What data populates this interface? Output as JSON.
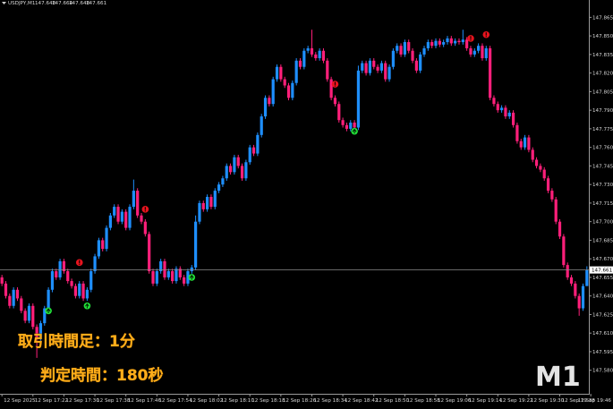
{
  "chart_data": {
    "type": "candlestick",
    "symbol": "USDJPY,M1",
    "up_color": "#1e8fff",
    "down_color": "#ff1f7a",
    "price_line_color": "#8a8a8a",
    "open": [
      147.655,
      147.65,
      147.64,
      147.632,
      147.645,
      147.638,
      147.628,
      147.62,
      147.632,
      147.615,
      147.605,
      147.618,
      147.63,
      147.645,
      147.66,
      147.655,
      147.668,
      147.66,
      147.652,
      147.648,
      147.64,
      147.65,
      147.638,
      147.645,
      147.66,
      147.672,
      147.685,
      147.678,
      147.695,
      147.705,
      147.712,
      147.7,
      147.708,
      147.695,
      147.712,
      147.725,
      147.705,
      147.7,
      147.69,
      147.66,
      147.65,
      147.66,
      147.668,
      147.655,
      147.66,
      147.652,
      147.662,
      147.655,
      147.65,
      147.66,
      147.663,
      147.7,
      147.715,
      147.71,
      147.72,
      147.712,
      147.725,
      147.73,
      147.735,
      147.745,
      147.74,
      147.752,
      147.745,
      147.735,
      147.748,
      147.76,
      147.755,
      147.77,
      147.785,
      147.8,
      147.795,
      147.815,
      147.825,
      147.815,
      147.81,
      147.8,
      147.812,
      147.83,
      147.825,
      147.838,
      147.84,
      147.835,
      147.832,
      147.838,
      147.83,
      147.815,
      147.8,
      147.795,
      147.782,
      147.778,
      147.775,
      147.78,
      147.776,
      147.822,
      147.828,
      147.82,
      147.83,
      147.825,
      147.822,
      147.828,
      147.815,
      147.825,
      147.838,
      147.842,
      147.835,
      147.845,
      147.838,
      147.83,
      147.822,
      147.835,
      147.84,
      147.845,
      147.842,
      147.846,
      147.843,
      147.845,
      147.848,
      147.844,
      147.846,
      147.845,
      147.847,
      147.84,
      147.835,
      147.838,
      147.842,
      147.832,
      147.84,
      147.8,
      147.795,
      147.79,
      147.792,
      147.785,
      147.788,
      147.778,
      147.765,
      147.76,
      147.768,
      147.758,
      147.75,
      147.745,
      147.742,
      147.735,
      147.725,
      147.718,
      147.7,
      147.688,
      147.665,
      147.655,
      147.65,
      147.64,
      147.63,
      147.648
    ],
    "high": [
      147.657,
      147.652,
      147.642,
      147.647,
      147.647,
      147.64,
      147.63,
      147.634,
      147.634,
      147.617,
      147.62,
      147.632,
      147.647,
      147.662,
      147.662,
      147.67,
      147.67,
      147.662,
      147.654,
      147.65,
      147.652,
      147.652,
      147.647,
      147.662,
      147.674,
      147.687,
      147.687,
      147.697,
      147.707,
      147.714,
      147.714,
      147.71,
      147.71,
      147.714,
      147.734,
      147.727,
      147.707,
      147.702,
      147.692,
      147.662,
      147.662,
      147.67,
      147.67,
      147.662,
      147.662,
      147.664,
      147.664,
      147.657,
      147.662,
      147.665,
      147.705,
      147.717,
      147.717,
      147.722,
      147.722,
      147.727,
      147.732,
      147.737,
      147.747,
      147.747,
      147.754,
      147.754,
      147.747,
      147.75,
      147.762,
      147.762,
      147.772,
      147.787,
      147.802,
      147.802,
      147.817,
      147.827,
      147.827,
      147.817,
      147.812,
      147.814,
      147.832,
      147.832,
      147.84,
      147.842,
      147.855,
      147.837,
      147.84,
      147.84,
      147.832,
      147.817,
      147.802,
      147.797,
      147.784,
      147.78,
      147.782,
      147.782,
      147.826,
      147.83,
      147.83,
      147.832,
      147.832,
      147.827,
      147.83,
      147.83,
      147.827,
      147.84,
      147.844,
      147.844,
      147.847,
      147.847,
      147.84,
      147.832,
      147.837,
      147.842,
      147.847,
      147.847,
      147.848,
      147.848,
      147.847,
      147.85,
      147.85,
      147.848,
      147.848,
      147.855,
      147.849,
      147.842,
      147.84,
      147.844,
      147.844,
      147.842,
      147.842,
      147.802,
      147.797,
      147.794,
      147.794,
      147.79,
      147.79,
      147.78,
      147.767,
      147.77,
      147.77,
      147.76,
      147.752,
      147.747,
      147.744,
      147.737,
      147.727,
      147.72,
      147.702,
      147.69,
      147.667,
      147.657,
      147.652,
      147.642,
      147.65,
      147.664
    ],
    "low": [
      147.648,
      147.638,
      147.63,
      147.63,
      147.636,
      147.626,
      147.618,
      147.618,
      147.613,
      147.59,
      147.603,
      147.616,
      147.628,
      147.643,
      147.653,
      147.653,
      147.658,
      147.65,
      147.646,
      147.638,
      147.638,
      147.636,
      147.636,
      147.643,
      147.658,
      147.67,
      147.676,
      147.676,
      147.693,
      147.703,
      147.698,
      147.698,
      147.693,
      147.693,
      147.71,
      147.703,
      147.698,
      147.688,
      147.658,
      147.648,
      147.648,
      147.658,
      147.653,
      147.653,
      147.65,
      147.65,
      147.653,
      147.648,
      147.648,
      147.658,
      147.661,
      147.698,
      147.708,
      147.708,
      147.71,
      147.71,
      147.723,
      147.728,
      147.733,
      147.738,
      147.738,
      147.743,
      147.733,
      147.733,
      147.746,
      147.753,
      147.753,
      147.768,
      147.783,
      147.793,
      147.793,
      147.813,
      147.813,
      147.808,
      147.798,
      147.798,
      147.81,
      147.823,
      147.823,
      147.836,
      147.833,
      147.83,
      147.83,
      147.828,
      147.813,
      147.798,
      147.793,
      147.78,
      147.776,
      147.773,
      147.773,
      147.774,
      147.774,
      147.82,
      147.818,
      147.818,
      147.823,
      147.82,
      147.82,
      147.813,
      147.813,
      147.823,
      147.836,
      147.833,
      147.833,
      147.836,
      147.828,
      147.82,
      147.82,
      147.833,
      147.838,
      147.84,
      147.84,
      147.841,
      147.841,
      147.843,
      147.842,
      147.842,
      147.843,
      147.843,
      147.838,
      147.833,
      147.833,
      147.836,
      147.83,
      147.83,
      147.798,
      147.793,
      147.788,
      147.788,
      147.783,
      147.783,
      147.776,
      147.763,
      147.758,
      147.758,
      147.756,
      147.748,
      147.743,
      147.74,
      147.733,
      147.723,
      147.716,
      147.698,
      147.686,
      147.663,
      147.653,
      147.648,
      147.638,
      147.624,
      147.628,
      147.648
    ],
    "close": [
      147.65,
      147.64,
      147.632,
      147.645,
      147.638,
      147.628,
      147.62,
      147.632,
      147.615,
      147.605,
      147.618,
      147.63,
      147.645,
      147.66,
      147.655,
      147.668,
      147.66,
      147.652,
      147.648,
      147.64,
      147.65,
      147.638,
      147.645,
      147.66,
      147.672,
      147.685,
      147.678,
      147.695,
      147.705,
      147.712,
      147.7,
      147.708,
      147.695,
      147.712,
      147.725,
      147.705,
      147.7,
      147.69,
      147.66,
      147.65,
      147.66,
      147.668,
      147.655,
      147.66,
      147.652,
      147.662,
      147.655,
      147.65,
      147.66,
      147.663,
      147.7,
      147.715,
      147.71,
      147.72,
      147.712,
      147.725,
      147.73,
      147.735,
      147.745,
      147.74,
      147.752,
      147.745,
      147.735,
      147.748,
      147.76,
      147.755,
      147.77,
      147.785,
      147.8,
      147.795,
      147.815,
      147.825,
      147.815,
      147.81,
      147.8,
      147.812,
      147.83,
      147.825,
      147.838,
      147.84,
      147.835,
      147.832,
      147.838,
      147.83,
      147.815,
      147.8,
      147.795,
      147.782,
      147.778,
      147.775,
      147.78,
      147.776,
      147.822,
      147.828,
      147.82,
      147.83,
      147.825,
      147.822,
      147.828,
      147.815,
      147.825,
      147.838,
      147.842,
      147.835,
      147.845,
      147.838,
      147.83,
      147.822,
      147.835,
      147.84,
      147.845,
      147.842,
      147.846,
      147.843,
      147.845,
      147.848,
      147.844,
      147.846,
      147.845,
      147.847,
      147.84,
      147.835,
      147.838,
      147.842,
      147.832,
      147.84,
      147.8,
      147.795,
      147.79,
      147.792,
      147.785,
      147.788,
      147.778,
      147.765,
      147.76,
      147.768,
      147.758,
      147.75,
      147.745,
      147.742,
      147.735,
      147.725,
      147.718,
      147.7,
      147.688,
      147.665,
      147.655,
      147.65,
      147.64,
      147.63,
      147.648,
      147.661
    ],
    "sell_signals": {
      "color": "#e8141e",
      "index": [
        20,
        37,
        86,
        121,
        125
      ],
      "price": [
        147.667,
        147.71,
        147.811,
        147.848,
        147.851
      ]
    },
    "buy_signals": {
      "color": "#22e03a",
      "index": [
        12,
        22,
        49,
        91
      ],
      "price": [
        147.628,
        147.632,
        147.655,
        147.773
      ]
    },
    "xlim": [
      -0.5,
      151.5
    ],
    "xticks": [
      {
        "value": 0,
        "label": "12 Sep 2025"
      },
      {
        "value": 8,
        "label": "12 Sep 17:22"
      },
      {
        "value": 16,
        "label": "12 Sep 17:30"
      },
      {
        "value": 24,
        "label": "12 Sep 17:38"
      },
      {
        "value": 32,
        "label": "12 Sep 17:46"
      },
      {
        "value": 40,
        "label": "12 Sep 17:54"
      },
      {
        "value": 48,
        "label": "12 Sep 18:02"
      },
      {
        "value": 56,
        "label": "12 Sep 18:10"
      },
      {
        "value": 64,
        "label": "12 Sep 18:18"
      },
      {
        "value": 72,
        "label": "12 Sep 18:26"
      },
      {
        "value": 80,
        "label": "12 Sep 18:34"
      },
      {
        "value": 88,
        "label": "12 Sep 18:42"
      },
      {
        "value": 96,
        "label": "12 Sep 18:50"
      },
      {
        "value": 104,
        "label": "12 Sep 18:58"
      },
      {
        "value": 112,
        "label": "12 Sep 19:06"
      },
      {
        "value": 120,
        "label": "12 Sep 19:14"
      },
      {
        "value": 128,
        "label": "12 Sep 19:22"
      },
      {
        "value": 136,
        "label": "12 Sep 19:30"
      },
      {
        "value": 144,
        "label": "12 Sep 19:38"
      },
      {
        "value": 152,
        "label": "12 Sep 19:46"
      }
    ],
    "ylim": [
      147.561,
      147.879
    ],
    "yticks": [
      147.865,
      {
        "value": 147.85,
        "label": "147.850"
      },
      147.835,
      {
        "value": 147.82,
        "label": "147.820"
      },
      147.805,
      {
        "value": 147.79,
        "label": "147.790"
      },
      147.775,
      {
        "value": 147.76,
        "label": "147.760"
      },
      147.745,
      {
        "value": 147.73,
        "label": "147.730"
      },
      147.715,
      {
        "value": 147.7,
        "label": "147.700"
      },
      147.685,
      {
        "value": 147.67,
        "label": "147.670"
      },
      147.655,
      {
        "value": 147.64,
        "label": "147.640"
      },
      147.625,
      {
        "value": 147.61,
        "label": "147.610"
      },
      147.595,
      {
        "value": 147.58,
        "label": "147.580"
      }
    ],
    "annotations": [
      "取引時間足：1分",
      "判定時間：180秒",
      "M1"
    ]
  }
}
